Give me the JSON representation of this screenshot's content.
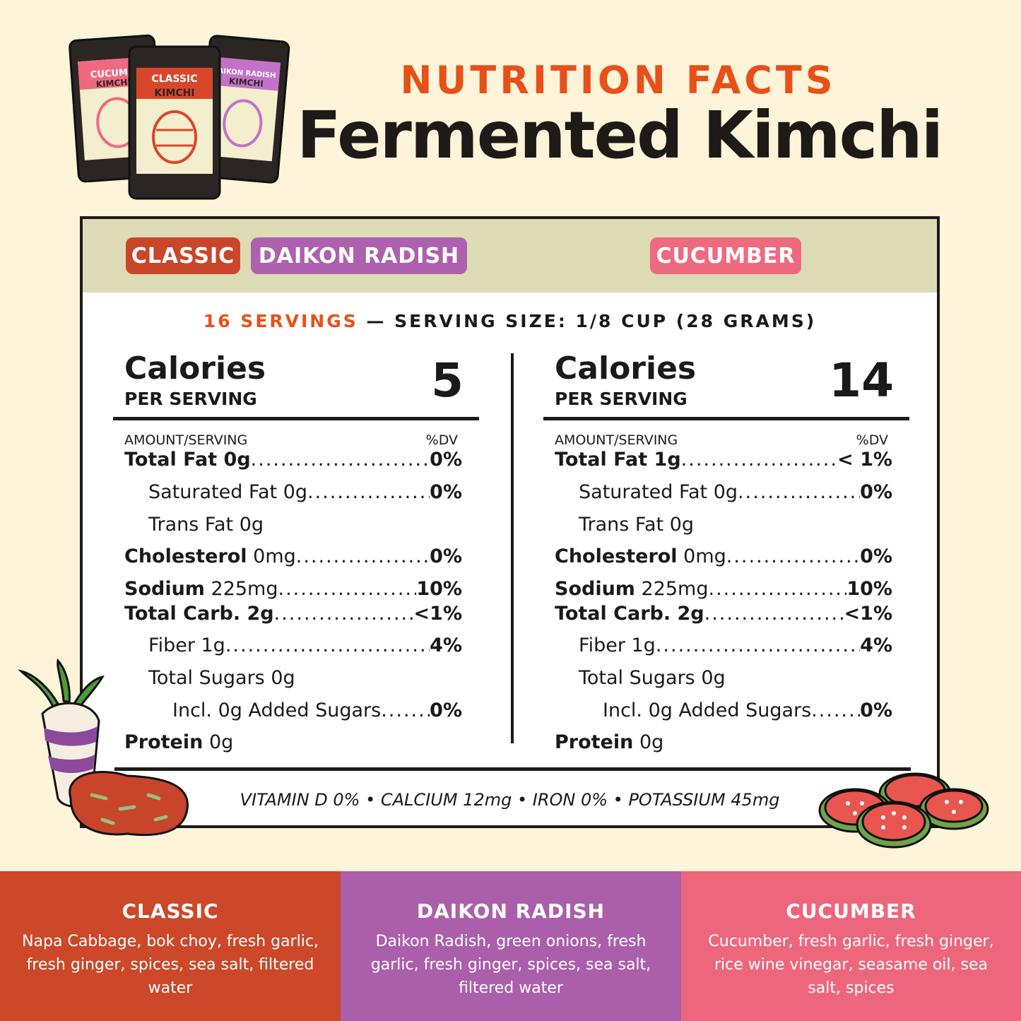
{
  "header": {
    "eyebrow": "NUTRITION FACTS",
    "title": "Fermented Kimchi"
  },
  "pouches": [
    {
      "label_top": "CUCUMB",
      "label_sub": "KIMCHI",
      "color": "#f06a7f"
    },
    {
      "label_top": "CLASSIC",
      "label_sub": "KIMCHI",
      "color": "#d9472b"
    },
    {
      "label_top": "AIKON RADISH",
      "label_sub": "KIMCHI",
      "color": "#c372c8"
    }
  ],
  "tags": {
    "classic": {
      "label": "CLASSIC",
      "color": "#c9462b"
    },
    "daikon": {
      "label": "DAIKON RADISH",
      "color": "#ad60ad"
    },
    "cucumber": {
      "label": "CUCUMBER",
      "color": "#ee6a7e"
    }
  },
  "servings": {
    "count": "16 SERVINGS",
    "size": " — SERVING SIZE: 1/8 CUP (28 GRAMS)"
  },
  "panels": [
    {
      "calories_label": "Calories",
      "per_serving": "PER SERVING",
      "calories": "5",
      "amount_header": "AMOUNT/SERVING",
      "dv_header": "%DV",
      "rows": [
        {
          "bold": "Total Fat 0g",
          "rest": "",
          "value": "0%",
          "indent": 0,
          "dots": true
        },
        {
          "bold": "",
          "rest": "Saturated Fat 0g",
          "value": "0%",
          "indent": 1,
          "dots": true
        },
        {
          "bold": "",
          "rest": "Trans Fat 0g",
          "value": "",
          "indent": 1,
          "dots": false
        },
        {
          "bold": "Cholesterol",
          "rest": " 0mg",
          "value": "0%",
          "indent": 0,
          "dots": true
        },
        {
          "bold": "Sodium",
          "rest": " 225mg",
          "value": "10%",
          "indent": 0,
          "dots": true
        },
        {
          "bold": "Total Carb. 2g",
          "rest": "",
          "value": "<1%",
          "indent": 0,
          "dots": true
        },
        {
          "bold": "",
          "rest": "Fiber 1g",
          "value": "4%",
          "indent": 1,
          "dots": true
        },
        {
          "bold": "",
          "rest": "Total Sugars 0g",
          "value": "",
          "indent": 1,
          "dots": false
        },
        {
          "bold": "",
          "rest": "Incl. 0g Added Sugars",
          "value": "0%",
          "indent": 2,
          "dots": true
        },
        {
          "bold": "Protein",
          "rest": " 0g",
          "value": "",
          "indent": 0,
          "dots": false
        }
      ]
    },
    {
      "calories_label": "Calories",
      "per_serving": "PER SERVING",
      "calories": "14",
      "amount_header": "AMOUNT/SERVING",
      "dv_header": "%DV",
      "rows": [
        {
          "bold": "Total Fat 1g",
          "rest": "",
          "value": "< 1%",
          "indent": 0,
          "dots": true
        },
        {
          "bold": "",
          "rest": "Saturated Fat 0g",
          "value": "0%",
          "indent": 1,
          "dots": true
        },
        {
          "bold": "",
          "rest": "Trans Fat 0g",
          "value": "",
          "indent": 1,
          "dots": false
        },
        {
          "bold": "Cholesterol",
          "rest": " 0mg",
          "value": "0%",
          "indent": 0,
          "dots": true
        },
        {
          "bold": "Sodium",
          "rest": " 225mg",
          "value": "10%",
          "indent": 0,
          "dots": true
        },
        {
          "bold": "Total Carb. 2g",
          "rest": "",
          "value": "<1%",
          "indent": 0,
          "dots": true
        },
        {
          "bold": "",
          "rest": "Fiber 1g",
          "value": "4%",
          "indent": 1,
          "dots": true
        },
        {
          "bold": "",
          "rest": "Total Sugars 0g",
          "value": "",
          "indent": 1,
          "dots": false
        },
        {
          "bold": "",
          "rest": "Incl. 0g Added Sugars",
          "value": "0%",
          "indent": 2,
          "dots": true
        },
        {
          "bold": "Protein",
          "rest": " 0g",
          "value": "",
          "indent": 0,
          "dots": false
        }
      ]
    }
  ],
  "vitamins": "VITAMIN D 0% • CALCIUM 12mg • IRON 0% • POTASSIUM 45mg",
  "ingredients": [
    {
      "name": "CLASSIC",
      "text": "Napa Cabbage, bok choy, fresh garlic, fresh ginger, spices, sea salt, filtered water",
      "color": "#cc4829"
    },
    {
      "name": "DAIKON RADISH",
      "text": "Daikon Radish, green onions, fresh garlic, fresh ginger, spices, sea salt, filtered water",
      "color": "#ab5fab"
    },
    {
      "name": "CUCUMBER",
      "text": "Cucumber, fresh garlic, fresh ginger, rice wine vinegar, seasame oil, sea salt, spices",
      "color": "#ee667c"
    }
  ]
}
